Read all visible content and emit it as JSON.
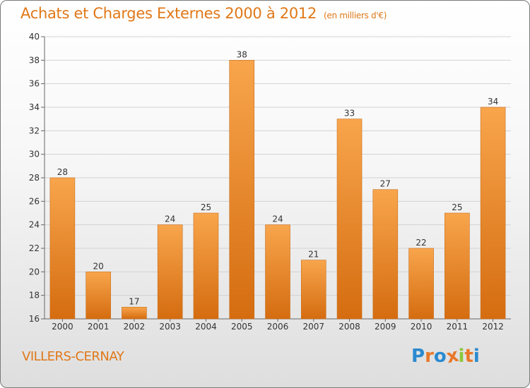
{
  "chart_data": {
    "type": "bar",
    "title": "Achats et Charges Externes 2000 à 2012",
    "subtitle": "(en milliers d'€)",
    "categories": [
      "2000",
      "2001",
      "2002",
      "2003",
      "2004",
      "2005",
      "2006",
      "2007",
      "2008",
      "2009",
      "2010",
      "2011",
      "2012"
    ],
    "values": [
      28,
      20,
      17,
      24,
      25,
      38,
      24,
      21,
      33,
      27,
      22,
      25,
      34
    ],
    "ylim": [
      16,
      40
    ],
    "yticks": [
      16,
      18,
      20,
      22,
      24,
      26,
      28,
      30,
      32,
      34,
      36,
      38,
      40
    ],
    "xlabel": "",
    "ylabel": "",
    "grid": true,
    "colors": {
      "bar_light": "#f8a54c",
      "bar_dark": "#d56c10",
      "text": "#e07818"
    }
  },
  "place_name": "VILLERS-CERNAY",
  "logo": {
    "letters": [
      "P",
      "r",
      "o",
      "x",
      "i",
      "t",
      "i"
    ],
    "colors": [
      "#2a8ad0",
      "#e8782a",
      "#2a8ad0",
      "#e8782a",
      "#8cc83c",
      "#e8782a",
      "#2a8ad0"
    ]
  }
}
